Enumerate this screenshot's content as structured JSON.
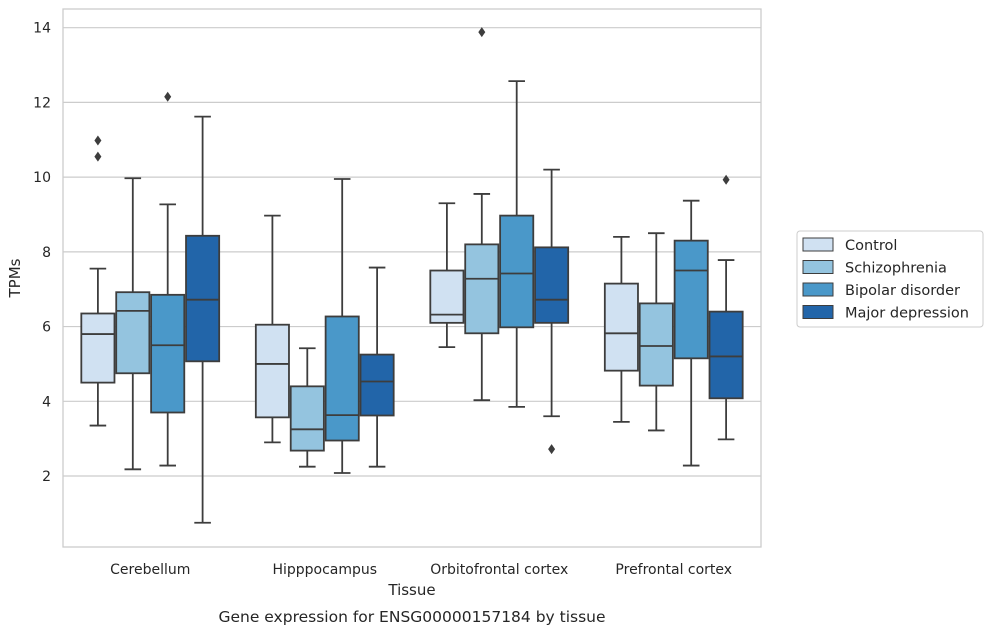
{
  "caption": "Gene expression for ENSG00000157184 by tissue",
  "chart_data": {
    "type": "box",
    "xlabel": "Tissue",
    "ylabel": "TPMs",
    "ylim": [
      0.1,
      14.5
    ],
    "yticks": [
      2,
      4,
      6,
      8,
      10,
      12,
      14
    ],
    "grid": "horizontal",
    "legend_position": "right",
    "categories": [
      "Cerebellum",
      "Hipppocampus",
      "Orbitofrontal cortex",
      "Prefrontal cortex"
    ],
    "series": [
      {
        "name": "Control",
        "color": "#d0e1f2",
        "boxes": [
          {
            "whislo": 3.35,
            "q1": 4.5,
            "med": 5.8,
            "q3": 6.35,
            "whishi": 7.55,
            "fliers": [
              10.55,
              10.98
            ]
          },
          {
            "whislo": 2.9,
            "q1": 3.57,
            "med": 5.0,
            "q3": 6.05,
            "whishi": 8.97,
            "fliers": []
          },
          {
            "whislo": 5.45,
            "q1": 6.1,
            "med": 6.32,
            "q3": 7.5,
            "whishi": 9.3,
            "fliers": []
          },
          {
            "whislo": 3.45,
            "q1": 4.82,
            "med": 5.82,
            "q3": 7.15,
            "whishi": 8.4,
            "fliers": []
          }
        ]
      },
      {
        "name": "Schizophrenia",
        "color": "#94c4df",
        "boxes": [
          {
            "whislo": 2.18,
            "q1": 4.75,
            "med": 6.42,
            "q3": 6.92,
            "whishi": 9.97,
            "fliers": []
          },
          {
            "whislo": 2.25,
            "q1": 2.68,
            "med": 3.25,
            "q3": 4.4,
            "whishi": 5.42,
            "fliers": []
          },
          {
            "whislo": 4.03,
            "q1": 5.82,
            "med": 7.28,
            "q3": 8.2,
            "whishi": 9.55,
            "fliers": [
              13.88
            ]
          },
          {
            "whislo": 3.22,
            "q1": 4.42,
            "med": 5.48,
            "q3": 6.62,
            "whishi": 8.5,
            "fliers": []
          }
        ]
      },
      {
        "name": "Bipolar disorder",
        "color": "#4a98c9",
        "boxes": [
          {
            "whislo": 2.28,
            "q1": 3.7,
            "med": 5.5,
            "q3": 6.85,
            "whishi": 9.27,
            "fliers": [
              12.15
            ]
          },
          {
            "whislo": 2.08,
            "q1": 2.95,
            "med": 3.63,
            "q3": 6.27,
            "whishi": 9.95,
            "fliers": []
          },
          {
            "whislo": 3.85,
            "q1": 5.98,
            "med": 7.42,
            "q3": 8.97,
            "whishi": 12.57,
            "fliers": []
          },
          {
            "whislo": 2.28,
            "q1": 5.15,
            "med": 7.5,
            "q3": 8.3,
            "whishi": 9.37,
            "fliers": []
          }
        ]
      },
      {
        "name": "Major depression",
        "color": "#2265a9",
        "boxes": [
          {
            "whislo": 0.75,
            "q1": 5.07,
            "med": 6.72,
            "q3": 8.43,
            "whishi": 11.62,
            "fliers": []
          },
          {
            "whislo": 2.25,
            "q1": 3.62,
            "med": 4.53,
            "q3": 5.25,
            "whishi": 7.58,
            "fliers": []
          },
          {
            "whislo": 3.6,
            "q1": 6.1,
            "med": 6.72,
            "q3": 8.12,
            "whishi": 10.2,
            "fliers": [
              2.72
            ]
          },
          {
            "whislo": 2.98,
            "q1": 4.08,
            "med": 5.2,
            "q3": 6.4,
            "whishi": 7.78,
            "fliers": [
              9.93
            ]
          }
        ]
      }
    ]
  }
}
